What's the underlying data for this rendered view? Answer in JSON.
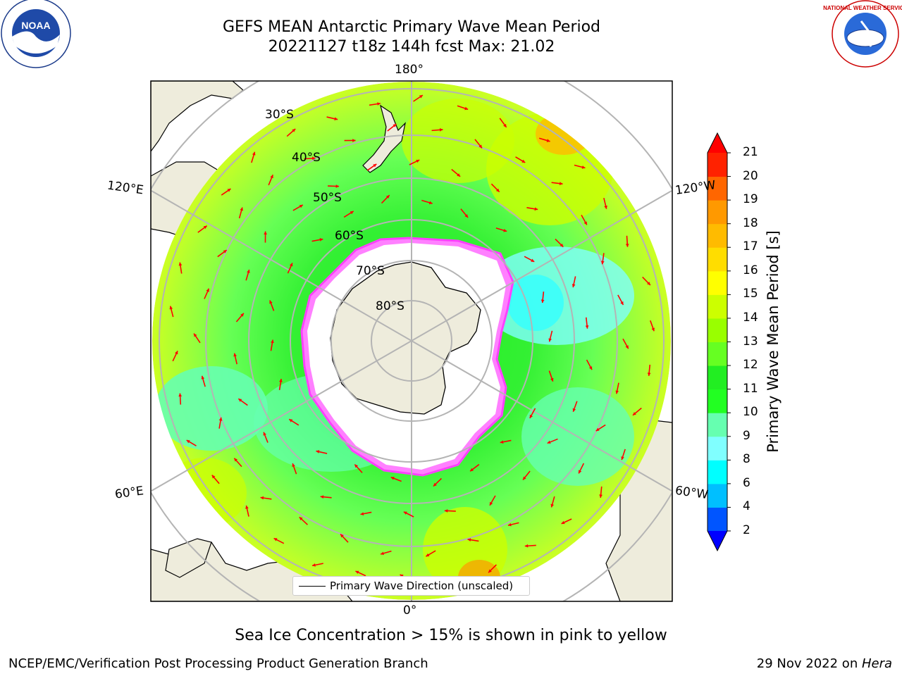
{
  "title": {
    "line1": "GEFS MEAN Antarctic Primary Wave Mean Period",
    "line2": "20221127 t18z 144h fcst   Max: 21.02"
  },
  "map": {
    "projection": "south-polar-stereographic",
    "lon_labels": {
      "top": "180°",
      "bottom": "0°",
      "upper_left": "120°E",
      "upper_right": "120°W",
      "lower_left": "60°E",
      "lower_right": "60°W"
    },
    "lat_labels": [
      "30°S",
      "40°S",
      "50°S",
      "60°S",
      "70°S",
      "80°S"
    ],
    "colors": {
      "land": "#eeecdc",
      "ice": "#ffffff",
      "grid": "#b4b4b4",
      "arrow": "#ff0000",
      "ice_edge": "#ff40ff"
    }
  },
  "legend": {
    "label": "Primary Wave Direction (unscaled)"
  },
  "colorbar": {
    "label": "Primary Wave Mean Period [s]",
    "ticks": [
      "2",
      "4",
      "6",
      "8",
      "9",
      "10",
      "11",
      "12",
      "13",
      "14",
      "15",
      "16",
      "17",
      "18",
      "19",
      "20",
      "21"
    ],
    "colors": [
      "#0055ff",
      "#00bfff",
      "#00ffff",
      "#80ffff",
      "#66ffb0",
      "#22ff22",
      "#22ee22",
      "#66ff22",
      "#99ff00",
      "#ccff00",
      "#ffff00",
      "#ffdd00",
      "#ffbb00",
      "#ff9900",
      "#ff6600",
      "#ff2200"
    ],
    "under_color": "#0000ff",
    "over_color": "#ff0000"
  },
  "caption": "Sea Ice Concentration > 15% is shown in pink to yellow",
  "footer": {
    "left": "NCEP/EMC/Verification Post Processing Product Generation Branch",
    "right_prefix": "29 Nov 2022 on ",
    "right_host": "Hera"
  },
  "logos": {
    "left": "NOAA",
    "right": "NATIONAL WEATHER SERVICE"
  }
}
